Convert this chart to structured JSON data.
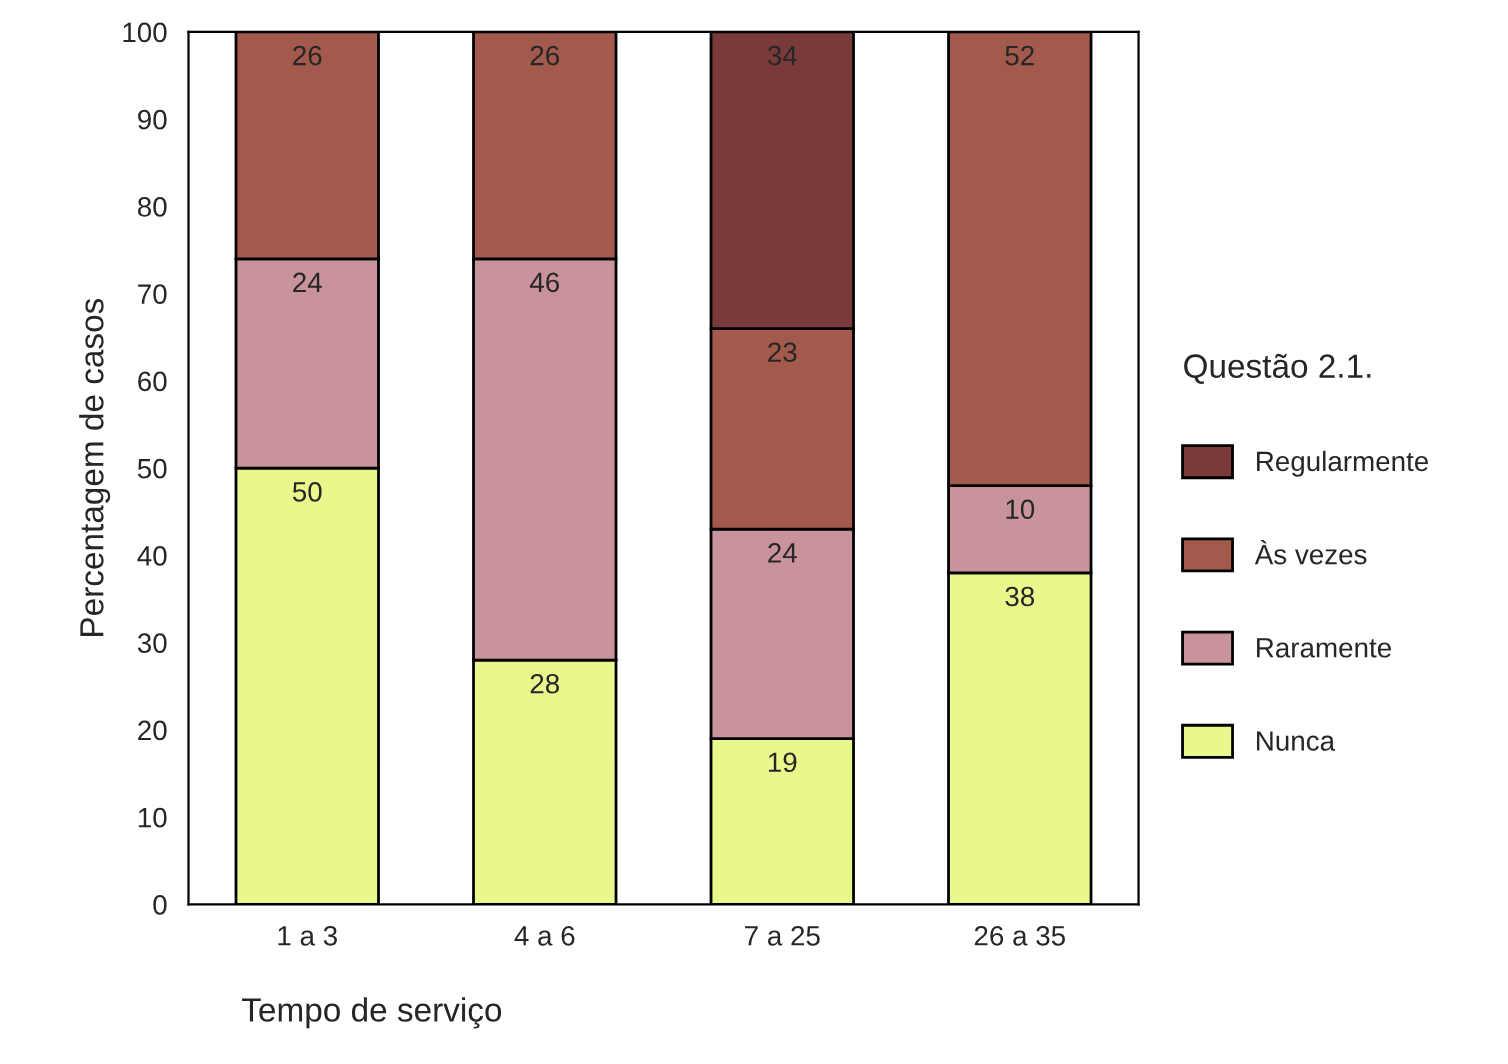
{
  "chart_data": {
    "type": "bar",
    "stacked": true,
    "xlabel": "Tempo de serviço",
    "ylabel": "Percentagem de casos",
    "legend_title": "Questão 2.1.",
    "legend": "right",
    "categories": [
      "1 a 3",
      "4 a 6",
      "7 a 25",
      "26 a 35"
    ],
    "series": [
      {
        "name": "Nunca",
        "color": "#eaf78c",
        "values": [
          50,
          28,
          19,
          38
        ]
      },
      {
        "name": "Raramente",
        "color": "#c9939b",
        "values": [
          24,
          46,
          24,
          10
        ]
      },
      {
        "name": "Às vezes",
        "color": "#a35a4c",
        "values": [
          26,
          26,
          23,
          52
        ]
      },
      {
        "name": "Regularmente",
        "color": "#7b3a3a",
        "values": [
          null,
          null,
          34,
          null
        ]
      }
    ],
    "data_labels": true,
    "ylim": [
      0,
      100
    ],
    "yticks": [
      0,
      10,
      20,
      30,
      40,
      50,
      60,
      70,
      80,
      90,
      100
    ],
    "grid": false
  }
}
